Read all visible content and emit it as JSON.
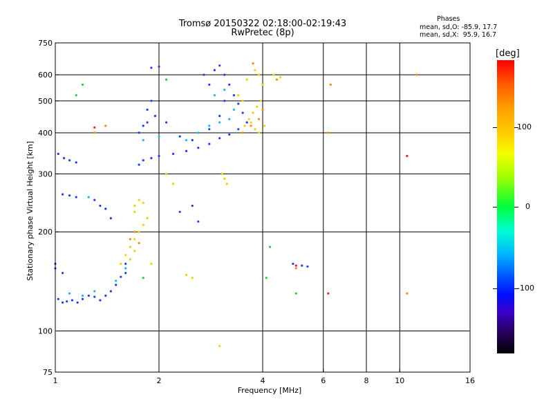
{
  "title_line1": "Tromsø 20150322 02:18:00-02:19:43",
  "title_line2": "RwPretec (8p)",
  "phase_stats": {
    "heading": "Phases",
    "line1": "mean, sd,O: -85.9, 17.7",
    "line2": "mean, sd,X:  95.9, 16.7"
  },
  "colorbar": {
    "unit": "[deg]",
    "ticks": [
      "100",
      "0",
      "-100"
    ]
  },
  "chart_data": {
    "type": "scatter",
    "xlabel": "Frequency [MHz]",
    "ylabel": "Stationary phase Virtual Height [km]",
    "xscale": "log",
    "yscale": "log",
    "xlim": [
      1,
      16
    ],
    "ylim": [
      75,
      750
    ],
    "xticks": [
      "1",
      "2",
      "4",
      "6",
      "8",
      "10",
      "16"
    ],
    "yticks": [
      "75",
      "100",
      "200",
      "300",
      "400",
      "500",
      "600",
      "750"
    ],
    "grid": true,
    "series": [
      {
        "color_hint": "blue",
        "points": [
          [
            1.02,
            125
          ],
          [
            1.05,
            122
          ],
          [
            1.08,
            123
          ],
          [
            1.12,
            124
          ],
          [
            1.16,
            122
          ],
          [
            1.2,
            125
          ],
          [
            1.25,
            128
          ],
          [
            1.3,
            127
          ],
          [
            1.35,
            124
          ],
          [
            1.4,
            128
          ],
          [
            1.45,
            132
          ],
          [
            1.5,
            138
          ],
          [
            1.55,
            146
          ],
          [
            1.6,
            150
          ],
          [
            1.02,
            345
          ],
          [
            1.06,
            335
          ],
          [
            1.1,
            330
          ],
          [
            1.15,
            325
          ],
          [
            1.05,
            260
          ],
          [
            1.1,
            258
          ],
          [
            1.15,
            255
          ],
          [
            1.35,
            240
          ],
          [
            1.4,
            235
          ],
          [
            1.3,
            250
          ],
          [
            1.45,
            220
          ],
          [
            1.6,
            160
          ],
          [
            1.0,
            160
          ],
          [
            1.05,
            150
          ],
          [
            1.75,
            320
          ],
          [
            1.8,
            330
          ],
          [
            1.9,
            335
          ],
          [
            2.0,
            340
          ],
          [
            2.2,
            345
          ],
          [
            2.4,
            352
          ],
          [
            2.6,
            360
          ],
          [
            2.8,
            370
          ],
          [
            3.0,
            385
          ],
          [
            3.2,
            395
          ],
          [
            3.4,
            410
          ],
          [
            3.6,
            430
          ],
          [
            1.75,
            400
          ],
          [
            1.8,
            420
          ],
          [
            1.85,
            430
          ],
          [
            1.95,
            450
          ],
          [
            1.85,
            470
          ],
          [
            1.9,
            500
          ],
          [
            2.1,
            430
          ],
          [
            2.3,
            390
          ],
          [
            2.5,
            380
          ],
          [
            2.8,
            410
          ],
          [
            3.0,
            450
          ],
          [
            3.1,
            500
          ],
          [
            2.7,
            600
          ],
          [
            2.8,
            560
          ],
          [
            2.9,
            620
          ],
          [
            3.0,
            640
          ],
          [
            3.1,
            600
          ],
          [
            3.2,
            560
          ],
          [
            3.3,
            520
          ],
          [
            3.4,
            490
          ],
          [
            3.5,
            460
          ],
          [
            2.5,
            240
          ],
          [
            2.3,
            230
          ],
          [
            2.6,
            215
          ],
          [
            4.9,
            160
          ],
          [
            5.2,
            158
          ],
          [
            5.4,
            157
          ],
          [
            1.0,
            155
          ],
          [
            1.9,
            630
          ],
          [
            2.0,
            635
          ]
        ]
      },
      {
        "color_hint": "cyan",
        "points": [
          [
            1.1,
            130
          ],
          [
            1.2,
            128
          ],
          [
            1.3,
            132
          ],
          [
            1.5,
            142
          ],
          [
            1.6,
            155
          ],
          [
            2.4,
            380
          ],
          [
            2.6,
            400
          ],
          [
            2.8,
            420
          ],
          [
            3.0,
            430
          ],
          [
            3.2,
            440
          ],
          [
            3.3,
            470
          ],
          [
            2.9,
            520
          ],
          [
            3.1,
            540
          ],
          [
            1.8,
            380
          ],
          [
            2.0,
            390
          ],
          [
            1.25,
            255
          ]
        ]
      },
      {
        "color_hint": "yellow",
        "points": [
          [
            1.55,
            160
          ],
          [
            1.6,
            170
          ],
          [
            1.65,
            180
          ],
          [
            1.7,
            190
          ],
          [
            1.75,
            200
          ],
          [
            1.8,
            210
          ],
          [
            1.85,
            220
          ],
          [
            1.7,
            240
          ],
          [
            1.75,
            250
          ],
          [
            1.8,
            245
          ],
          [
            1.65,
            165
          ],
          [
            1.7,
            175
          ],
          [
            1.9,
            160
          ],
          [
            3.05,
            300
          ],
          [
            3.1,
            290
          ],
          [
            3.15,
            280
          ],
          [
            3.55,
            420
          ],
          [
            3.65,
            440
          ],
          [
            3.75,
            460
          ],
          [
            3.85,
            480
          ],
          [
            3.95,
            500
          ],
          [
            4.0,
            560
          ],
          [
            3.9,
            600
          ],
          [
            3.8,
            620
          ],
          [
            3.6,
            580
          ],
          [
            3.4,
            520
          ],
          [
            3.5,
            500
          ],
          [
            3.7,
            430
          ],
          [
            3.8,
            410
          ],
          [
            3.9,
            400
          ],
          [
            4.05,
            420
          ],
          [
            2.5,
            145
          ],
          [
            2.4,
            148
          ],
          [
            4.3,
            600
          ],
          [
            4.5,
            590
          ],
          [
            2.1,
            300
          ],
          [
            2.2,
            280
          ],
          [
            3.0,
            90
          ],
          [
            1.7,
            230
          ]
        ]
      },
      {
        "color_hint": "orange",
        "points": [
          [
            1.65,
            190
          ],
          [
            1.7,
            200
          ],
          [
            1.75,
            185
          ],
          [
            3.5,
            400
          ],
          [
            3.7,
            420
          ],
          [
            3.9,
            440
          ],
          [
            4.0,
            470
          ],
          [
            4.4,
            580
          ],
          [
            3.75,
            650
          ],
          [
            1.3,
            400
          ],
          [
            1.4,
            420
          ],
          [
            6.2,
            400
          ],
          [
            10.5,
            130
          ],
          [
            11.2,
            600
          ],
          [
            6.3,
            560
          ],
          [
            5.0,
            155
          ]
        ]
      },
      {
        "color_hint": "green",
        "points": [
          [
            1.2,
            560
          ],
          [
            1.15,
            520
          ],
          [
            1.8,
            145
          ],
          [
            2.1,
            580
          ],
          [
            5.0,
            130
          ],
          [
            4.1,
            145
          ],
          [
            4.2,
            180
          ]
        ]
      },
      {
        "color_hint": "red",
        "points": [
          [
            5.0,
            158
          ],
          [
            1.3,
            415
          ],
          [
            10.5,
            340
          ],
          [
            6.2,
            130
          ]
        ]
      }
    ]
  }
}
